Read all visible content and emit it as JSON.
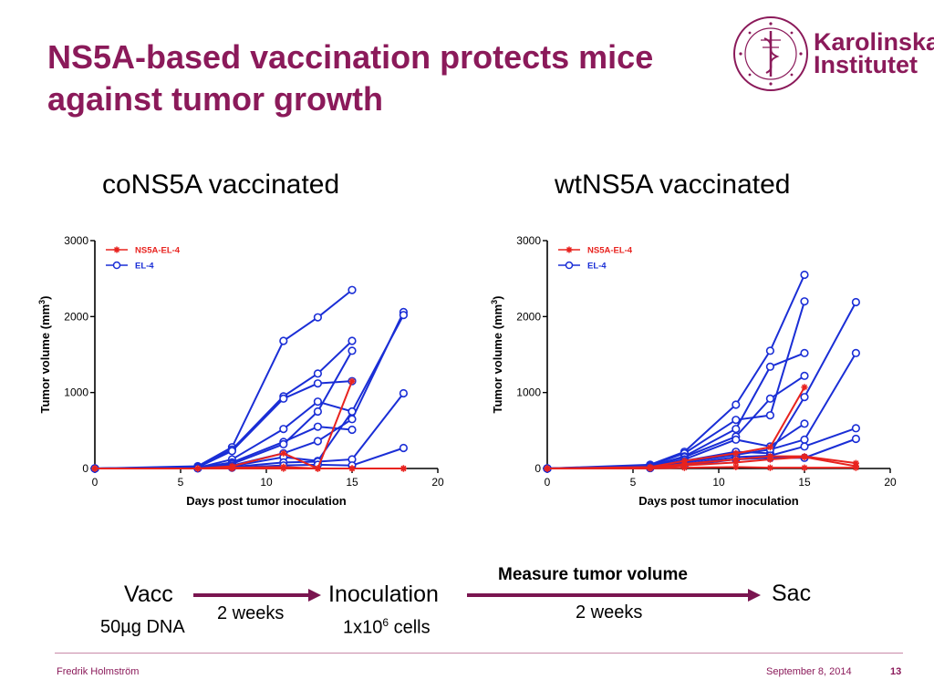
{
  "slide": {
    "title_line1": "NS5A-based vaccination protects mice",
    "title_line2": "against tumor growth",
    "logo": {
      "line1": "Karolinska",
      "line2": "Institutet",
      "seal_text": "KAROLINSKA INSTITUTET · ANNO 1810"
    },
    "footer": {
      "author": "Fredrik Holmström",
      "date": "September 8, 2014",
      "page": "13"
    },
    "colors": {
      "title": "#8b1a5a",
      "arrow": "#7a1550",
      "ns5a_series": "#e8231f",
      "el4_series": "#1a2ed6"
    }
  },
  "flow": {
    "vacc": "Vacc",
    "vacc_dose": "50µg DNA",
    "interval1": "2 weeks",
    "inoculation": "Inoculation",
    "cells_prefix": "1x10",
    "cells_exp": "6",
    "cells_suffix": " cells",
    "measure": "Measure tumor volume",
    "interval2": "2 weeks",
    "sac": "Sac"
  },
  "chart_data": [
    {
      "type": "line",
      "title": "coNS5A vaccinated",
      "xlabel": "Days post tumor inoculation",
      "ylabel_main": "Tumor volume (mm",
      "ylabel_sup": "3",
      "ylabel_end": ")",
      "xlim": [
        0,
        20
      ],
      "ylim": [
        0,
        3000
      ],
      "xticks": [
        0,
        5,
        10,
        15,
        20
      ],
      "yticks": [
        0,
        1000,
        2000,
        3000
      ],
      "legend_position": "top-left",
      "legend": [
        {
          "name": "NS5A-EL-4",
          "marker": "star",
          "color": "#e8231f"
        },
        {
          "name": "EL-4",
          "marker": "circle",
          "color": "#1a2ed6"
        }
      ],
      "series": [
        {
          "group": "EL-4",
          "x": [
            0,
            6,
            8,
            11,
            13,
            15
          ],
          "y": [
            0,
            30,
            280,
            1680,
            1990,
            2350
          ]
        },
        {
          "group": "EL-4",
          "x": [
            0,
            6,
            8,
            11,
            13,
            15
          ],
          "y": [
            0,
            20,
            250,
            950,
            1250,
            1680
          ]
        },
        {
          "group": "EL-4",
          "x": [
            0,
            6,
            8,
            11,
            13,
            15
          ],
          "y": [
            0,
            15,
            230,
            920,
            1120,
            1150
          ]
        },
        {
          "group": "EL-4",
          "x": [
            0,
            6,
            8,
            11,
            13,
            15
          ],
          "y": [
            0,
            10,
            120,
            520,
            880,
            750
          ]
        },
        {
          "group": "EL-4",
          "x": [
            0,
            6,
            8,
            11,
            13,
            15
          ],
          "y": [
            0,
            10,
            80,
            350,
            550,
            510
          ]
        },
        {
          "group": "EL-4",
          "x": [
            0,
            6,
            8,
            11,
            13,
            15
          ],
          "y": [
            0,
            8,
            60,
            320,
            750,
            1550
          ]
        },
        {
          "group": "EL-4",
          "x": [
            0,
            6,
            8,
            11,
            13,
            15,
            18
          ],
          "y": [
            0,
            5,
            40,
            200,
            360,
            650,
            2060
          ]
        },
        {
          "group": "EL-4",
          "x": [
            0,
            6,
            8,
            11,
            13,
            15,
            18
          ],
          "y": [
            0,
            5,
            30,
            150,
            100,
            750,
            2020
          ]
        },
        {
          "group": "EL-4",
          "x": [
            0,
            6,
            8,
            11,
            13,
            15,
            18
          ],
          "y": [
            0,
            3,
            20,
            80,
            90,
            120,
            990
          ]
        },
        {
          "group": "EL-4",
          "x": [
            0,
            6,
            8,
            11,
            13,
            15,
            18
          ],
          "y": [
            0,
            2,
            10,
            40,
            50,
            40,
            270
          ]
        },
        {
          "group": "NS5A-EL-4",
          "x": [
            0,
            6,
            8,
            11,
            13,
            15
          ],
          "y": [
            0,
            0,
            30,
            200,
            0,
            1150
          ]
        },
        {
          "group": "NS5A-EL-4",
          "x": [
            0,
            6,
            8,
            11,
            13,
            15,
            18
          ],
          "y": [
            0,
            0,
            0,
            0,
            0,
            0,
            0
          ]
        },
        {
          "group": "NS5A-EL-4",
          "x": [
            0,
            6,
            8,
            11,
            13,
            15,
            18
          ],
          "y": [
            0,
            0,
            10,
            20,
            0,
            0,
            0
          ]
        }
      ]
    },
    {
      "type": "line",
      "title": "wtNS5A vaccinated",
      "xlabel": "Days post tumor inoculation",
      "ylabel_main": "Tumor volume (mm",
      "ylabel_sup": "3",
      "ylabel_end": ")",
      "xlim": [
        0,
        20
      ],
      "ylim": [
        0,
        3000
      ],
      "xticks": [
        0,
        5,
        10,
        15,
        20
      ],
      "yticks": [
        0,
        1000,
        2000,
        3000
      ],
      "legend_position": "top-left",
      "legend": [
        {
          "name": "NS5A-EL-4",
          "marker": "star",
          "color": "#e8231f"
        },
        {
          "name": "EL-4",
          "marker": "circle",
          "color": "#1a2ed6"
        }
      ],
      "series": [
        {
          "group": "EL-4",
          "x": [
            0,
            6,
            8,
            11,
            13,
            15
          ],
          "y": [
            0,
            50,
            220,
            840,
            1550,
            2550
          ]
        },
        {
          "group": "EL-4",
          "x": [
            0,
            6,
            8,
            11,
            13,
            15
          ],
          "y": [
            0,
            40,
            200,
            640,
            700,
            2200
          ]
        },
        {
          "group": "EL-4",
          "x": [
            0,
            6,
            8,
            11,
            13,
            15
          ],
          "y": [
            0,
            30,
            160,
            520,
            1340,
            1520
          ]
        },
        {
          "group": "EL-4",
          "x": [
            0,
            6,
            8,
            11,
            13,
            15
          ],
          "y": [
            0,
            30,
            150,
            420,
            920,
            1220
          ]
        },
        {
          "group": "EL-4",
          "x": [
            0,
            6,
            8,
            11,
            13,
            15
          ],
          "y": [
            0,
            20,
            120,
            380,
            290,
            590
          ]
        },
        {
          "group": "EL-4",
          "x": [
            0,
            6,
            8,
            11,
            13,
            15,
            18
          ],
          "y": [
            0,
            20,
            100,
            220,
            200,
            940,
            2190
          ]
        },
        {
          "group": "EL-4",
          "x": [
            0,
            6,
            8,
            11,
            13,
            15,
            18
          ],
          "y": [
            0,
            10,
            80,
            180,
            250,
            380,
            1520
          ]
        },
        {
          "group": "EL-4",
          "x": [
            0,
            6,
            8,
            11,
            13,
            15,
            18
          ],
          "y": [
            0,
            10,
            60,
            150,
            170,
            290,
            530
          ]
        },
        {
          "group": "EL-4",
          "x": [
            0,
            6,
            8,
            11,
            13,
            15,
            18
          ],
          "y": [
            0,
            5,
            40,
            120,
            140,
            140,
            390
          ]
        },
        {
          "group": "NS5A-EL-4",
          "x": [
            0,
            6,
            8,
            11,
            13,
            15
          ],
          "y": [
            0,
            20,
            100,
            200,
            280,
            1070
          ]
        },
        {
          "group": "NS5A-EL-4",
          "x": [
            0,
            6,
            8,
            11,
            13,
            15,
            18
          ],
          "y": [
            0,
            10,
            60,
            120,
            160,
            160,
            70
          ]
        },
        {
          "group": "NS5A-EL-4",
          "x": [
            0,
            6,
            8,
            11,
            13,
            15,
            18
          ],
          "y": [
            0,
            5,
            40,
            80,
            120,
            150,
            30
          ]
        },
        {
          "group": "NS5A-EL-4",
          "x": [
            0,
            6,
            8,
            11,
            13,
            15,
            18
          ],
          "y": [
            0,
            0,
            10,
            20,
            10,
            10,
            10
          ]
        }
      ]
    }
  ]
}
